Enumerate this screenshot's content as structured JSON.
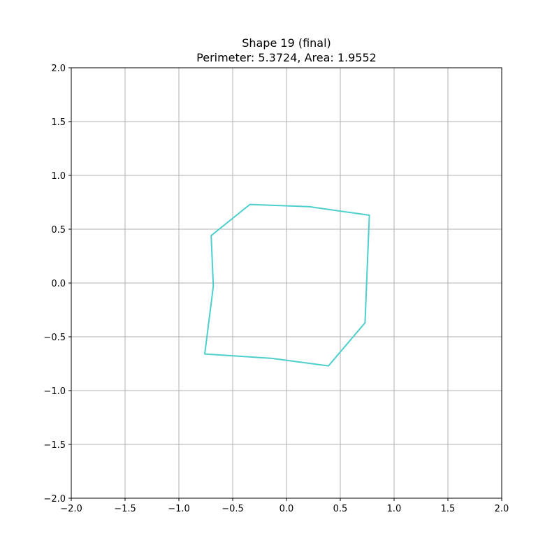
{
  "chart_data": {
    "type": "line",
    "title": "Shape 19 (final)",
    "subtitle": "Perimeter: 5.3724, Area: 1.9552",
    "xlabel": "",
    "ylabel": "",
    "xlim": [
      -2.0,
      2.0
    ],
    "ylim": [
      -2.0,
      2.0
    ],
    "grid": true,
    "x_ticks": [
      -2.0,
      -1.5,
      -1.0,
      -0.5,
      0.0,
      0.5,
      1.0,
      1.5,
      2.0
    ],
    "y_ticks": [
      -2.0,
      -1.5,
      -1.0,
      -0.5,
      0.0,
      0.5,
      1.0,
      1.5,
      2.0
    ],
    "x_tick_labels": [
      "−2.0",
      "−1.5",
      "−1.0",
      "−0.5",
      "0.0",
      "0.5",
      "1.0",
      "1.5",
      "2.0"
    ],
    "y_tick_labels": [
      "−2.0",
      "−1.5",
      "−1.0",
      "−0.5",
      "0.0",
      "0.5",
      "1.0",
      "1.5",
      "2.0"
    ],
    "series": [
      {
        "color": "#4ecfcb",
        "closed": true,
        "x": [
          -0.34,
          0.21,
          0.77,
          0.73,
          0.39,
          -0.14,
          -0.76,
          -0.68,
          -0.7
        ],
        "y": [
          0.73,
          0.71,
          0.63,
          -0.37,
          -0.77,
          -0.7,
          -0.66,
          -0.03,
          0.44
        ]
      }
    ]
  }
}
